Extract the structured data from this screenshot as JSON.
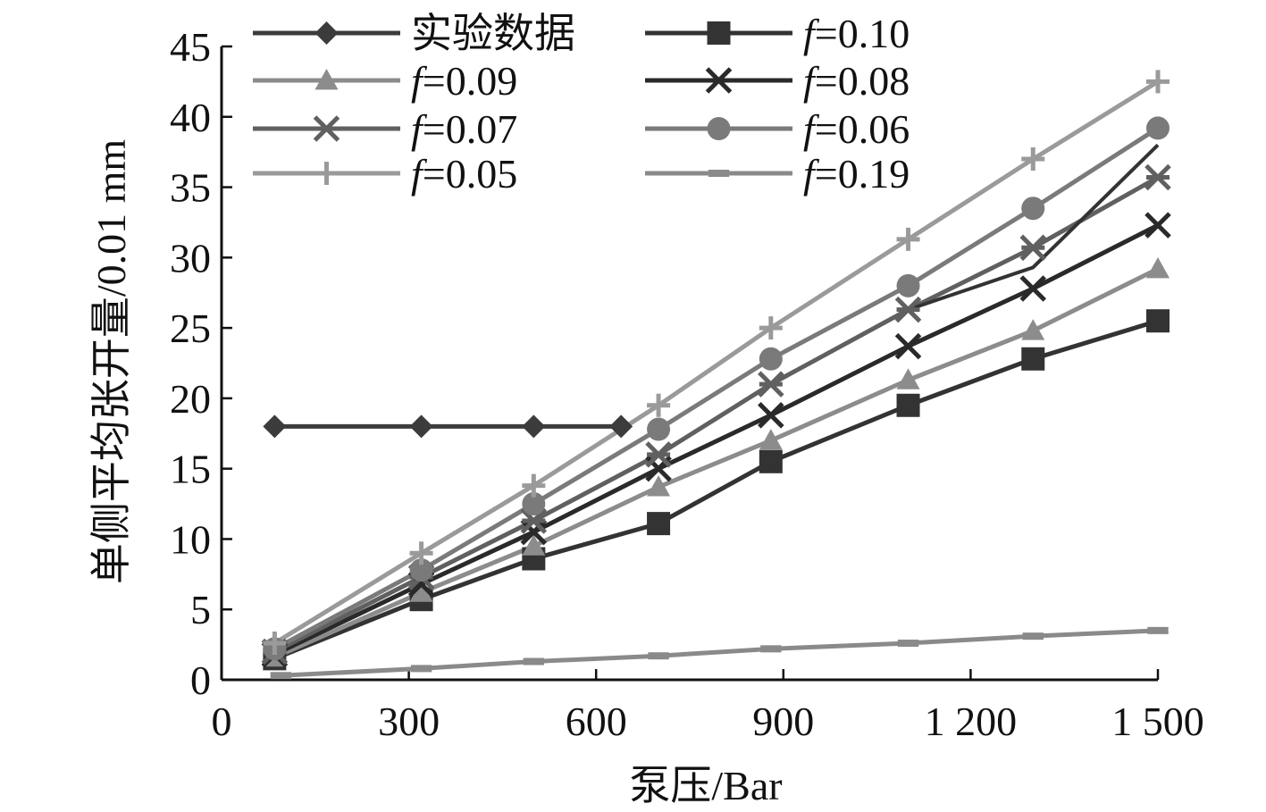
{
  "chart_data": {
    "type": "line",
    "title": "",
    "xlabel": "泵压/Bar",
    "ylabel": "单侧平均张开量/0.01 mm",
    "xlim": [
      0,
      1500
    ],
    "ylim": [
      0,
      45
    ],
    "x_ticks": [
      0,
      300,
      600,
      900,
      1200,
      1500
    ],
    "x_tick_labels": [
      "0",
      "300",
      "600",
      "900",
      "1 200",
      "1 500"
    ],
    "y_ticks": [
      0,
      5,
      10,
      15,
      20,
      25,
      30,
      35,
      40,
      45
    ],
    "y_tick_labels": [
      "0",
      "5",
      "10",
      "15",
      "20",
      "25",
      "30",
      "35",
      "40",
      "45"
    ],
    "grid": false,
    "legend_position": "top",
    "series": [
      {
        "name": "实验数据",
        "legend_italic": "",
        "legend_rest": "实验数据",
        "marker": "diamond",
        "color": "#3c3c3c",
        "x": [
          85,
          320,
          500,
          640
        ],
        "y": [
          18.0,
          18.0,
          18.0,
          18.0
        ]
      },
      {
        "name": "f=0.10",
        "legend_italic": "f",
        "legend_rest": "=0.10",
        "marker": "square",
        "color": "#333333",
        "x": [
          85,
          320,
          500,
          700,
          880,
          1100,
          1300,
          1500
        ],
        "y": [
          1.5,
          5.7,
          8.6,
          11.1,
          15.5,
          19.5,
          22.8,
          25.5
        ]
      },
      {
        "name": "f=0.09",
        "legend_italic": "f",
        "legend_rest": "=0.09",
        "marker": "triangle",
        "color": "#8c8c8c",
        "x": [
          85,
          320,
          500,
          700,
          880,
          1100,
          1300,
          1500
        ],
        "y": [
          1.6,
          6.2,
          9.5,
          13.7,
          17.0,
          21.3,
          24.8,
          29.2
        ]
      },
      {
        "name": "f=0.08",
        "legend_italic": "f",
        "legend_rest": "=0.08",
        "marker": "x",
        "color": "#2a2a2a",
        "x": [
          85,
          320,
          500,
          700,
          880,
          1100,
          1300,
          1500
        ],
        "y": [
          1.8,
          6.8,
          10.5,
          15.0,
          18.8,
          23.7,
          27.8,
          32.3
        ]
      },
      {
        "name": "f=0.07",
        "legend_italic": "f",
        "legend_rest": "=0.07",
        "marker": "star",
        "color": "#606060",
        "x": [
          85,
          320,
          500,
          700,
          880,
          1100,
          1300,
          1500
        ],
        "y": [
          2.0,
          7.3,
          11.3,
          16.0,
          21.0,
          26.3,
          30.7,
          35.7
        ]
      },
      {
        "name": "f=0.06",
        "legend_italic": "f",
        "legend_rest": "=0.06",
        "marker": "circle",
        "color": "#7a7a7a",
        "x": [
          85,
          320,
          500,
          700,
          880,
          1100,
          1300,
          1500
        ],
        "y": [
          2.2,
          7.8,
          12.5,
          17.8,
          22.8,
          28.0,
          33.5,
          39.2
        ]
      },
      {
        "name": "f=0.05",
        "legend_italic": "f",
        "legend_rest": "=0.05",
        "marker": "plus",
        "color": "#9a9a9a",
        "x": [
          85,
          320,
          500,
          700,
          880,
          1100,
          1300,
          1500
        ],
        "y": [
          2.6,
          9.0,
          13.8,
          19.5,
          25.0,
          31.3,
          37.0,
          42.5
        ]
      },
      {
        "name": "f=0.19",
        "legend_italic": "f",
        "legend_rest": "=0.19",
        "marker": "dash",
        "color": "#8a8a8a",
        "x": [
          95,
          320,
          500,
          700,
          880,
          1100,
          1300,
          1500
        ],
        "y": [
          0.3,
          0.8,
          1.3,
          1.7,
          2.2,
          2.6,
          3.1,
          3.5
        ]
      }
    ],
    "extra_lines": [
      {
        "series": "f=0.10",
        "color": "#333333",
        "x": [
          1100,
          1300,
          1500
        ],
        "y": [
          26.3,
          29.3,
          38.0
        ]
      }
    ]
  }
}
